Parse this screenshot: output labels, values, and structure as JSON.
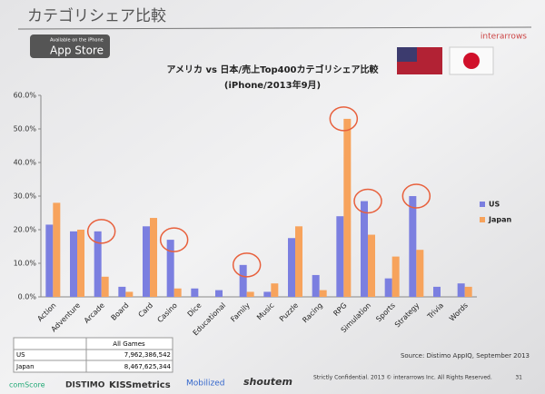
{
  "chart_data": {
    "type": "bar",
    "title": "アメリカ vs 日本/売上Top400カテゴリシェア比較",
    "subtitle": "(iPhone/2013年9月)",
    "categories": [
      "Action",
      "Adventure",
      "Arcade",
      "Board",
      "Card",
      "Casino",
      "Dice",
      "Educational",
      "Family",
      "Music",
      "Puzzle",
      "Racing",
      "RPG",
      "Simulation",
      "Sports",
      "Strategy",
      "Trivia",
      "Words"
    ],
    "series": [
      {
        "name": "US",
        "color": "#7b7fe0",
        "values": [
          21.5,
          19.5,
          19.5,
          3,
          21,
          17,
          2.5,
          2,
          9.5,
          1.5,
          17.5,
          6.5,
          24,
          28.5,
          5.5,
          30,
          3,
          4
        ]
      },
      {
        "name": "Japan",
        "color": "#f7a35c",
        "values": [
          28,
          20,
          6,
          1.5,
          23.5,
          2.5,
          0,
          0,
          1.5,
          4,
          21,
          2,
          53,
          18.5,
          12,
          14,
          0,
          3
        ]
      }
    ],
    "ylim": [
      0,
      60
    ],
    "yticks": [
      {
        "value": 0,
        "label": "0.0%"
      },
      {
        "value": 10,
        "label": "10.0%"
      },
      {
        "value": 20,
        "label": "20.0%"
      },
      {
        "value": 30,
        "label": "30.0%"
      },
      {
        "value": 40,
        "label": "40.0%"
      },
      {
        "value": 50,
        "label": "50.0%"
      },
      {
        "value": 60,
        "label": "60.0%"
      }
    ],
    "grid": false,
    "legend": "right",
    "source": "Source: Distimo AppIQ, September 2013"
  },
  "slide": {
    "title": "カテゴリシェア比較",
    "brand": "interarrows",
    "badge": {
      "small": "Available on the iPhone",
      "big": "App Store"
    },
    "table": {
      "header": "All Games",
      "rows": [
        [
          "US",
          "7,962,386,542"
        ],
        [
          "Japan",
          "8,467,625,344"
        ]
      ]
    },
    "footer": {
      "logos": [
        "comScore",
        "DISTIMO",
        "KISSmetrics",
        "Mobilized",
        "shoutem"
      ],
      "notice": "Strictly Confidential. 2013 © interarrows Inc. All Rights Reserved.",
      "page": "31"
    }
  }
}
